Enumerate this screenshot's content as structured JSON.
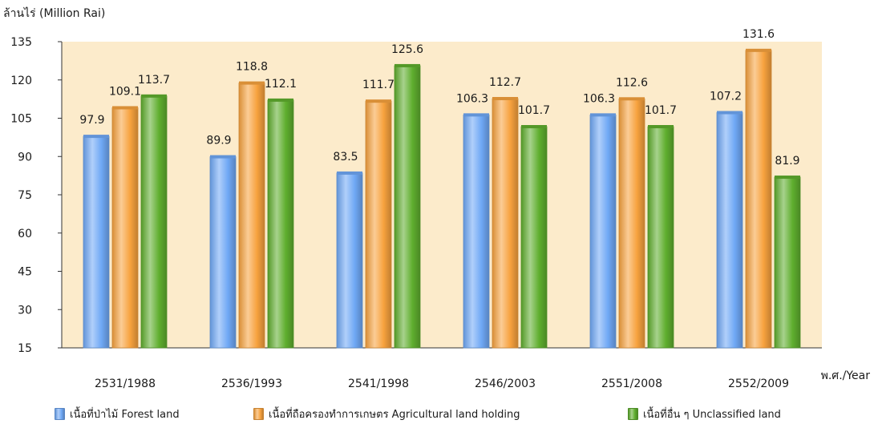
{
  "chart_data": {
    "type": "bar",
    "ylabel": "ล้านไร่ (Million Rai)",
    "xlabel": "พ.ศ./Year",
    "categories": [
      "2531/1988",
      "2536/1993",
      "2541/1998",
      "2546/2003",
      "2551/2008",
      "2552/2009"
    ],
    "ylim": [
      15,
      135
    ],
    "yticks": [
      15,
      30,
      45,
      60,
      75,
      90,
      105,
      120,
      135
    ],
    "grid": false,
    "legend_position": "bottom",
    "plot_background": "#FCEBCB",
    "series": [
      {
        "name": "เนื้อที่ป่าไม้ Forest land",
        "color": "#6FA8F5",
        "values": [
          97.9,
          89.9,
          83.5,
          106.3,
          106.3,
          107.2
        ],
        "labels": [
          "97.9",
          "89.9",
          "83.5",
          "106.3",
          "106.3",
          "107.2"
        ]
      },
      {
        "name": "เนื้อที่ถือครองทำการเกษตร Agricultural land holding",
        "color": "#F7A23E",
        "values": [
          109.1,
          118.8,
          111.7,
          112.7,
          112.6,
          131.6
        ],
        "labels": [
          "109.1",
          "118.8",
          "111.7",
          "112.7",
          "112.6",
          "131.6"
        ]
      },
      {
        "name": "เนื้อที่อื่น ๆ Unclassified land",
        "color": "#5FAE2E",
        "values": [
          113.7,
          112.1,
          125.6,
          101.7,
          101.7,
          81.9
        ],
        "labels": [
          "113.7",
          "112.1",
          "125.6",
          "101.7",
          "101.7",
          "81.9"
        ]
      }
    ]
  }
}
